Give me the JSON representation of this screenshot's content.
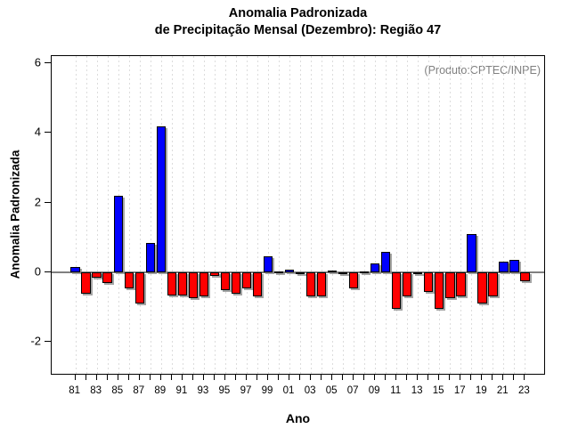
{
  "figure": {
    "title_line1": "Anomalia Padronizada",
    "title_line2": "de Precipitação Mensal (Dezembro): Região 47",
    "annotation": "(Produto:CPTEC/INPE)",
    "xlabel": "Ano",
    "ylabel": "Anomalia Padronizada"
  },
  "chart_data": {
    "type": "bar",
    "title": "Anomalia Padronizada de Precipitação Mensal (Dezembro): Região 47",
    "xlabel": "Ano",
    "ylabel": "Anomalia Padronizada",
    "annotation": "(Produto:CPTEC/INPE)",
    "categories": [
      "81",
      "82",
      "83",
      "84",
      "85",
      "86",
      "87",
      "88",
      "89",
      "90",
      "91",
      "92",
      "93",
      "94",
      "95",
      "96",
      "97",
      "98",
      "99",
      "00",
      "01",
      "02",
      "03",
      "04",
      "05",
      "06",
      "07",
      "08",
      "09",
      "10",
      "11",
      "12",
      "13",
      "14",
      "15",
      "16",
      "17",
      "18",
      "19",
      "20",
      "21",
      "22",
      "23"
    ],
    "values": [
      0.15,
      -0.6,
      -0.15,
      -0.3,
      2.2,
      -0.45,
      -0.9,
      0.85,
      4.2,
      -0.65,
      -0.65,
      -0.75,
      -0.7,
      -0.1,
      -0.5,
      -0.6,
      -0.45,
      -0.7,
      0.45,
      0.03,
      0.07,
      -0.05,
      -0.7,
      -0.7,
      0.05,
      -0.05,
      -0.45,
      0.02,
      0.25,
      0.6,
      -1.05,
      -0.7,
      -0.03,
      -0.55,
      -1.05,
      -0.75,
      -0.7,
      1.1,
      -0.9,
      -0.7,
      0.3,
      0.35,
      -0.25
    ],
    "x_tick_labels": [
      "81",
      "83",
      "85",
      "87",
      "89",
      "91",
      "93",
      "95",
      "97",
      "99",
      "01",
      "03",
      "05",
      "07",
      "09",
      "11",
      "13",
      "15",
      "17",
      "19",
      "21",
      "23"
    ],
    "y_ticks": [
      6,
      4,
      2,
      0,
      -2
    ],
    "y_tick_labels": [
      "6",
      "4",
      "2",
      "0",
      "-2"
    ],
    "ylim": [
      -2.95,
      6.2
    ],
    "grid": {
      "vertical_dashed_per_year": true,
      "horizontal": false
    },
    "legend_position": "none",
    "colors": {
      "positive_bar": "#0000ff",
      "negative_bar": "#ff0000",
      "bar_border": "#000000",
      "zero_line": "#808080",
      "grid_line": "#dcdcdc",
      "annotation_text": "#808080",
      "text": "#000000"
    }
  }
}
